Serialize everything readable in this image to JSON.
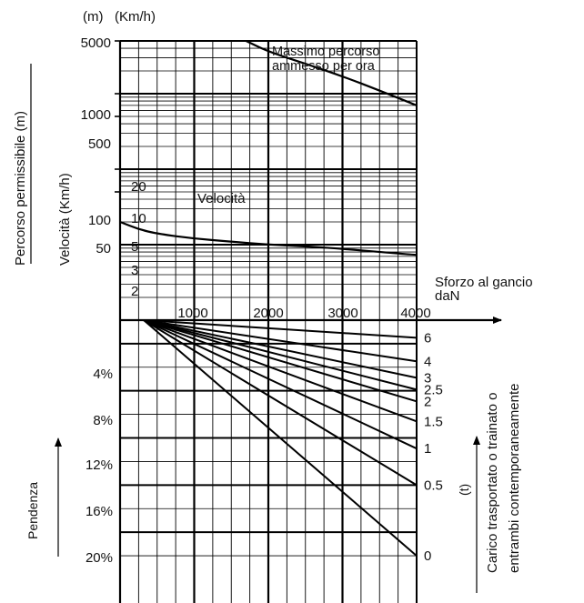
{
  "chart_data": [
    {
      "type": "line",
      "title": "",
      "left_units": [
        "(m)",
        "(Km/h)"
      ],
      "ylabel_outer": "Percorso permissibile (m)",
      "ylabel_inner": "Velocità (Km/h)",
      "x_title": [
        "Sforzo al gancio",
        "daN"
      ],
      "xlim": [
        0,
        4000
      ],
      "x_ticks": [
        1000,
        2000,
        3000,
        4000
      ],
      "y_scale": "log",
      "ylim": [
        1,
        5000
      ],
      "distance_ticks": [
        5000,
        1000,
        500,
        100,
        50
      ],
      "speed_ticks": [
        20,
        10,
        5,
        3,
        2
      ],
      "grid": true,
      "series": [
        {
          "name": "Massimo percorso ammesso per ora",
          "label_lines": [
            "Massimo percorso",
            "ammesso per ora"
          ],
          "x": [
            1700,
            2000,
            2500,
            3000,
            3500,
            4000
          ],
          "y": [
            5000,
            3600,
            2500,
            1700,
            1100,
            700
          ]
        },
        {
          "name": "Velocità",
          "label_lines": [
            "Velocità"
          ],
          "x": [
            0,
            250,
            500,
            1000,
            1500,
            2000,
            2500,
            3000,
            3500,
            4000
          ],
          "y": [
            20,
            16,
            14,
            12,
            11,
            10,
            9.5,
            8.8,
            8,
            7.3
          ]
        }
      ]
    },
    {
      "type": "line",
      "title": "",
      "ylabel": "Pendenza",
      "y_ticks": [
        "4%",
        "8%",
        "12%",
        "16%",
        "20%"
      ],
      "ylim": [
        0,
        24
      ],
      "xlim": [
        0,
        4000
      ],
      "right_label": "Carico trasportato o trainato o entrambi contemporaneamente",
      "right_label_lines": [
        "Carico trasportato o trainato o",
        "entrambi contemporaneamente"
      ],
      "right_unit": "(t)",
      "grid": true,
      "load_lines": [
        {
          "name": "0",
          "y_at_4000": 22
        },
        {
          "name": "0.5",
          "y_at_4000": 16
        },
        {
          "name": "1",
          "y_at_4000": 12.9
        },
        {
          "name": "1.5",
          "y_at_4000": 10.6
        },
        {
          "name": "2",
          "y_at_4000": 8.9
        },
        {
          "name": "2.5",
          "y_at_4000": 7.9
        },
        {
          "name": "3",
          "y_at_4000": 6.9
        },
        {
          "name": "4",
          "y_at_4000": 5.5
        },
        {
          "name": "6",
          "y_at_4000": 3.5
        }
      ]
    }
  ]
}
